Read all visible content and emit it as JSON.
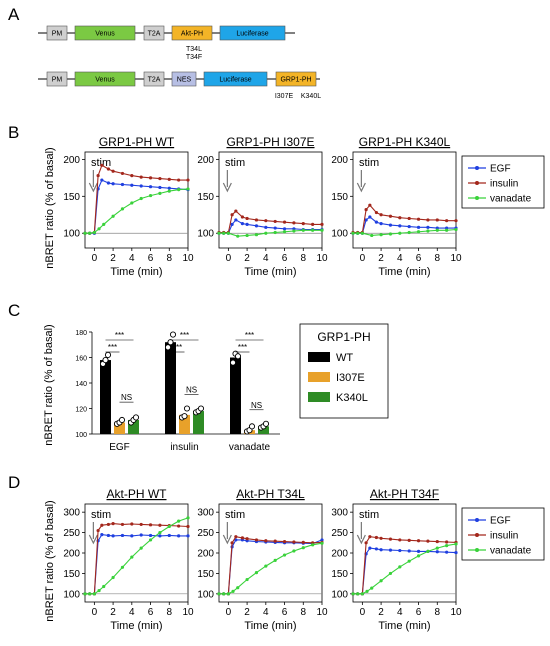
{
  "panel_letters": [
    "A",
    "B",
    "C",
    "D"
  ],
  "colors": {
    "egf": "#1f3fe0",
    "insulin": "#a3271c",
    "vanadate": "#39d23a",
    "wt_bar": "#000000",
    "i307e_bar": "#e8a12a",
    "k340l_bar": "#2e8b25",
    "pm_box": "#cfcfcf",
    "venus_box": "#7bc943",
    "t2a_box": "#cfcfcf",
    "aktph_box": "#f3b427",
    "luciferase_box": "#1fa5e8",
    "nes_box": "#b7bfe4",
    "grp1ph_box": "#f3b427"
  },
  "constructs": [
    {
      "boxes": [
        {
          "label": "PM",
          "color": "pm_box"
        },
        {
          "label": "Venus",
          "color": "venus_box"
        },
        {
          "label": "T2A",
          "color": "t2a_box"
        },
        {
          "label": "Akt-PH",
          "color": "aktph_box"
        },
        {
          "label": "Luciferase",
          "color": "luciferase_box"
        }
      ],
      "mutations": [
        "T34L",
        "T34F"
      ]
    },
    {
      "boxes": [
        {
          "label": "PM",
          "color": "pm_box"
        },
        {
          "label": "Venus",
          "color": "venus_box"
        },
        {
          "label": "T2A",
          "color": "t2a_box"
        },
        {
          "label": "NES",
          "color": "nes_box"
        },
        {
          "label": "Luciferase",
          "color": "luciferase_box"
        },
        {
          "label": "GRP1-PH",
          "color": "grp1ph_box"
        }
      ],
      "mutations": [
        "I307E",
        "K340L"
      ]
    }
  ],
  "stim_label": "stim",
  "legend": {
    "egf": "EGF",
    "insulin": "insulin",
    "vanadate": "vanadate"
  },
  "chart_data": [
    {
      "type": "line",
      "panel": "B",
      "title": "GRP1-PH WT",
      "xlabel": "Time (min)",
      "ylabel": "nBRET ratio (% of basal)",
      "xlim": [
        -1,
        10
      ],
      "ylim": [
        80,
        210
      ],
      "xticks": [
        0,
        2,
        4,
        6,
        8,
        10
      ],
      "yticks": [
        100,
        150,
        200
      ],
      "stim_time": 0,
      "series": [
        {
          "name": "EGF",
          "key": "egf",
          "x": [
            -1,
            -0.5,
            0,
            0.4,
            0.8,
            1.5,
            2,
            3,
            4,
            5,
            6,
            7,
            8,
            9,
            10
          ],
          "y": [
            100,
            100,
            100,
            160,
            172,
            168,
            167,
            166,
            165,
            164,
            163,
            162,
            161,
            160,
            159
          ]
        },
        {
          "name": "insulin",
          "key": "insulin",
          "x": [
            -1,
            -0.5,
            0,
            0.4,
            0.8,
            1.5,
            2,
            3,
            4,
            5,
            6,
            7,
            8,
            9,
            10
          ],
          "y": [
            100,
            100,
            101,
            178,
            192,
            187,
            184,
            181,
            178,
            176,
            175,
            174,
            173,
            172,
            172
          ]
        },
        {
          "name": "vanadate",
          "key": "vanadate",
          "x": [
            -1,
            -0.5,
            0,
            0.5,
            1,
            2,
            3,
            4,
            5,
            6,
            7,
            8,
            9,
            10
          ],
          "y": [
            100,
            100,
            101,
            106,
            112,
            123,
            133,
            141,
            147,
            151,
            154,
            157,
            159,
            160
          ]
        }
      ]
    },
    {
      "type": "line",
      "panel": "B",
      "title": "GRP1-PH I307E",
      "xlabel": "Time (min)",
      "ylabel": "",
      "xlim": [
        -1,
        10
      ],
      "ylim": [
        80,
        210
      ],
      "xticks": [
        0,
        2,
        4,
        6,
        8,
        10
      ],
      "yticks": [
        100,
        150,
        200
      ],
      "stim_time": 0,
      "series": [
        {
          "name": "EGF",
          "key": "egf",
          "x": [
            -1,
            -0.5,
            0,
            0.4,
            0.8,
            1.5,
            2,
            3,
            4,
            5,
            6,
            7,
            8,
            9,
            10
          ],
          "y": [
            100,
            100,
            100,
            112,
            118,
            113,
            112,
            110,
            108,
            107,
            106,
            106,
            105,
            105,
            105
          ]
        },
        {
          "name": "insulin",
          "key": "insulin",
          "x": [
            -1,
            -0.5,
            0,
            0.4,
            0.8,
            1.5,
            2,
            3,
            4,
            5,
            6,
            7,
            8,
            9,
            10
          ],
          "y": [
            101,
            101,
            101,
            125,
            130,
            122,
            120,
            118,
            117,
            116,
            115,
            114,
            113,
            112,
            112
          ]
        },
        {
          "name": "vanadate",
          "key": "vanadate",
          "x": [
            -1,
            -0.5,
            0,
            1,
            2,
            3,
            4,
            5,
            6,
            7,
            8,
            9,
            10
          ],
          "y": [
            100,
            100,
            100,
            96,
            97,
            98,
            100,
            101,
            102,
            103,
            104,
            104,
            104
          ]
        }
      ]
    },
    {
      "type": "line",
      "panel": "B",
      "title": "GRP1-PH K340L",
      "xlabel": "Time (min)",
      "ylabel": "",
      "xlim": [
        -1,
        10
      ],
      "ylim": [
        80,
        210
      ],
      "xticks": [
        0,
        2,
        4,
        6,
        8,
        10
      ],
      "yticks": [
        100,
        150,
        200
      ],
      "stim_time": 0,
      "series": [
        {
          "name": "EGF",
          "key": "egf",
          "x": [
            -1,
            -0.5,
            0,
            0.4,
            0.8,
            1.5,
            2,
            3,
            4,
            5,
            6,
            7,
            8,
            9,
            10
          ],
          "y": [
            100,
            100,
            100,
            118,
            122,
            115,
            113,
            111,
            110,
            109,
            108,
            108,
            107,
            107,
            107
          ]
        },
        {
          "name": "insulin",
          "key": "insulin",
          "x": [
            -1,
            -0.5,
            0,
            0.4,
            0.8,
            1.5,
            2,
            3,
            4,
            5,
            6,
            7,
            8,
            9,
            10
          ],
          "y": [
            101,
            101,
            101,
            132,
            138,
            128,
            125,
            123,
            121,
            120,
            119,
            118,
            118,
            117,
            117
          ]
        },
        {
          "name": "vanadate",
          "key": "vanadate",
          "x": [
            -1,
            -0.5,
            0,
            1,
            2,
            3,
            4,
            5,
            6,
            7,
            8,
            9,
            10
          ],
          "y": [
            100,
            100,
            100,
            97,
            98,
            99,
            100,
            101,
            102,
            103,
            104,
            104,
            105
          ]
        }
      ]
    },
    {
      "type": "bar",
      "panel": "C",
      "title": "",
      "ylabel": "nBRET ratio (% of basal)",
      "categories": [
        "EGF",
        "insulin",
        "vanadate"
      ],
      "ylim": [
        100,
        180
      ],
      "yticks": [
        100,
        120,
        140,
        160,
        180
      ],
      "legend_title": "GRP1-PH",
      "series": [
        {
          "name": "WT",
          "key": "wt_bar",
          "values": [
            158,
            172,
            160
          ],
          "points": [
            [
              155,
              158,
              162
            ],
            [
              168,
              172,
              178
            ],
            [
              156,
              163,
              161
            ]
          ]
        },
        {
          "name": "I307E",
          "key": "i307e_bar",
          "values": [
            109,
            115,
            103
          ],
          "points": [
            [
              108,
              109,
              111
            ],
            [
              113,
              114,
              120
            ],
            [
              102,
              103,
              106
            ]
          ]
        },
        {
          "name": "K340L",
          "key": "k340l_bar",
          "values": [
            111,
            118,
            106
          ],
          "points": [
            [
              109,
              111,
              113
            ],
            [
              117,
              118,
              120
            ],
            [
              105,
              106,
              108
            ]
          ]
        }
      ],
      "significance": [
        {
          "group": 0,
          "from": 0,
          "to": 2,
          "label": "***"
        },
        {
          "group": 0,
          "from": 0,
          "to": 1,
          "label": "***"
        },
        {
          "group": 0,
          "from": 1,
          "to": 2,
          "label": "NS"
        },
        {
          "group": 1,
          "from": 0,
          "to": 2,
          "label": "***"
        },
        {
          "group": 1,
          "from": 0,
          "to": 1,
          "label": "***"
        },
        {
          "group": 1,
          "from": 1,
          "to": 2,
          "label": "NS"
        },
        {
          "group": 2,
          "from": 0,
          "to": 2,
          "label": "***"
        },
        {
          "group": 2,
          "from": 0,
          "to": 1,
          "label": "***"
        },
        {
          "group": 2,
          "from": 1,
          "to": 2,
          "label": "NS"
        }
      ]
    },
    {
      "type": "line",
      "panel": "D",
      "title": "Akt-PH WT",
      "xlabel": "Time (min)",
      "ylabel": "nBRET ratio (% of basal)",
      "xlim": [
        -1,
        10
      ],
      "ylim": [
        80,
        320
      ],
      "xticks": [
        0,
        2,
        4,
        6,
        8,
        10
      ],
      "yticks": [
        100,
        150,
        200,
        250,
        300
      ],
      "stim_time": 0,
      "series": [
        {
          "name": "EGF",
          "key": "egf",
          "x": [
            -1,
            -0.5,
            0,
            0.4,
            0.8,
            1.5,
            2,
            3,
            4,
            5,
            6,
            7,
            8,
            9,
            10
          ],
          "y": [
            100,
            100,
            100,
            230,
            245,
            243,
            242,
            243,
            242,
            244,
            243,
            242,
            243,
            242,
            242
          ]
        },
        {
          "name": "insulin",
          "key": "insulin",
          "x": [
            -1,
            -0.5,
            0,
            0.4,
            0.8,
            1.5,
            2,
            3,
            4,
            5,
            6,
            7,
            8,
            9,
            10
          ],
          "y": [
            100,
            100,
            100,
            255,
            268,
            270,
            272,
            270,
            271,
            270,
            269,
            268,
            267,
            266,
            265
          ]
        },
        {
          "name": "vanadate",
          "key": "vanadate",
          "x": [
            -1,
            -0.5,
            0,
            0.5,
            1,
            2,
            3,
            4,
            5,
            6,
            7,
            8,
            9,
            10
          ],
          "y": [
            100,
            100,
            100,
            108,
            118,
            140,
            165,
            190,
            212,
            232,
            250,
            265,
            278,
            286
          ]
        }
      ]
    },
    {
      "type": "line",
      "panel": "D",
      "title": "Akt-PH T34L",
      "xlabel": "Time (min)",
      "ylabel": "",
      "xlim": [
        -1,
        10
      ],
      "ylim": [
        80,
        320
      ],
      "xticks": [
        0,
        2,
        4,
        6,
        8,
        10
      ],
      "yticks": [
        100,
        150,
        200,
        250,
        300
      ],
      "stim_time": 0,
      "series": [
        {
          "name": "EGF",
          "key": "egf",
          "x": [
            -1,
            -0.5,
            0,
            0.4,
            0.8,
            1.5,
            2,
            3,
            4,
            5,
            6,
            7,
            8,
            9,
            10
          ],
          "y": [
            100,
            100,
            100,
            215,
            232,
            232,
            230,
            228,
            227,
            226,
            225,
            225,
            224,
            223,
            232
          ]
        },
        {
          "name": "insulin",
          "key": "insulin",
          "x": [
            -1,
            -0.5,
            0,
            0.4,
            0.8,
            1.5,
            2,
            3,
            4,
            5,
            6,
            7,
            8,
            9,
            10
          ],
          "y": [
            100,
            100,
            100,
            225,
            240,
            237,
            235,
            232,
            230,
            229,
            228,
            227,
            226,
            225,
            226
          ]
        },
        {
          "name": "vanadate",
          "key": "vanadate",
          "x": [
            -1,
            -0.5,
            0,
            0.5,
            1,
            2,
            3,
            4,
            5,
            6,
            7,
            8,
            9,
            10
          ],
          "y": [
            100,
            100,
            100,
            106,
            115,
            135,
            152,
            168,
            182,
            195,
            205,
            213,
            220,
            224
          ]
        }
      ]
    },
    {
      "type": "line",
      "panel": "D",
      "title": "Akt-PH T34F",
      "xlabel": "Time (min)",
      "ylabel": "",
      "xlim": [
        -1,
        10
      ],
      "ylim": [
        80,
        320
      ],
      "xticks": [
        0,
        2,
        4,
        6,
        8,
        10
      ],
      "yticks": [
        100,
        150,
        200,
        250,
        300
      ],
      "stim_time": 0,
      "series": [
        {
          "name": "EGF",
          "key": "egf",
          "x": [
            -1,
            -0.5,
            0,
            0.4,
            0.8,
            1.5,
            2,
            3,
            4,
            5,
            6,
            7,
            8,
            9,
            10
          ],
          "y": [
            100,
            100,
            100,
            198,
            212,
            210,
            208,
            207,
            206,
            205,
            204,
            204,
            203,
            202,
            201
          ]
        },
        {
          "name": "insulin",
          "key": "insulin",
          "x": [
            -1,
            -0.5,
            0,
            0.4,
            0.8,
            1.5,
            2,
            3,
            4,
            5,
            6,
            7,
            8,
            9,
            10
          ],
          "y": [
            100,
            100,
            100,
            225,
            240,
            238,
            236,
            234,
            232,
            231,
            230,
            229,
            228,
            227,
            226
          ]
        },
        {
          "name": "vanadate",
          "key": "vanadate",
          "x": [
            -1,
            -0.5,
            0,
            0.5,
            1,
            2,
            3,
            4,
            5,
            6,
            7,
            8,
            9,
            10
          ],
          "y": [
            100,
            100,
            100,
            106,
            114,
            132,
            150,
            166,
            180,
            193,
            204,
            212,
            218,
            222
          ]
        }
      ]
    }
  ]
}
